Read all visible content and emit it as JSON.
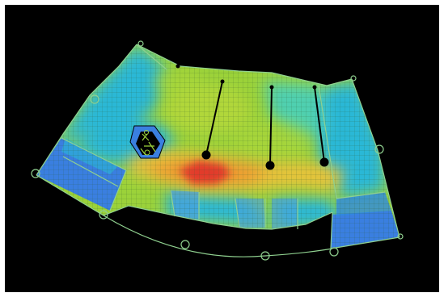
{
  "app": {
    "view": "slab-stress-contour",
    "background": "#000000"
  },
  "legend_colors": {
    "low": "#2f6fd8",
    "low_mid": "#2ab8d6",
    "mid": "#9bd23a",
    "mid_high": "#e8c23a",
    "high": "#e23a2a",
    "mesh_line": "#3d7a3d",
    "edge_line": "#8fd08f",
    "node": "#8fd08f",
    "wall": "#000000"
  },
  "icons": {
    "node": "circle-node-icon",
    "column": "column-dot-icon",
    "opening": "stair-opening-icon"
  }
}
